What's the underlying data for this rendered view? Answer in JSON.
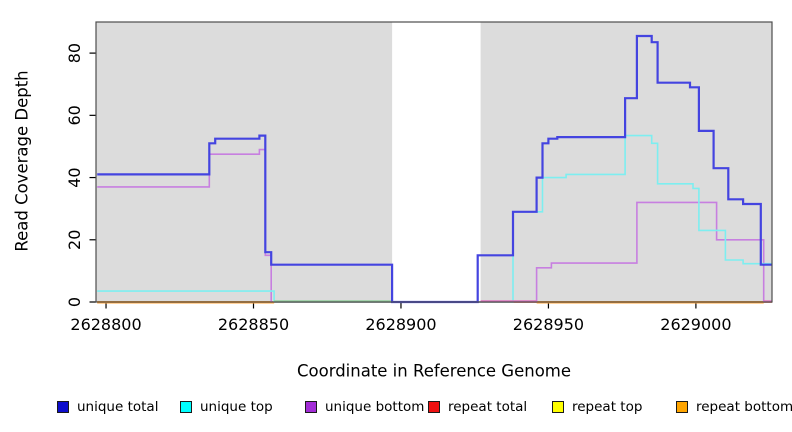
{
  "chart_data": {
    "type": "step-line",
    "title": "",
    "xlabel": "Coordinate in Reference Genome",
    "ylabel": "Read Coverage Depth",
    "xlim": [
      2628796.6,
      2629025.8
    ],
    "ylim": [
      0,
      90
    ],
    "x_ticks": [
      2628800,
      2628850,
      2628900,
      2628950,
      2629000
    ],
    "y_ticks": [
      0,
      20,
      40,
      60,
      80
    ],
    "grid": false,
    "plot_bg_color": "#dcdcdc",
    "border_color": "#4d4d4d",
    "no_data_region": {
      "from": 2628897,
      "to": 2628927,
      "color": "#ffffff"
    },
    "legend_position": "bottom",
    "series": [
      {
        "name": "unique total",
        "line_color": "#4444e0",
        "legend_color": "#0d0dcc",
        "line_width": 2.2,
        "steps": [
          [
            2628797,
            41
          ],
          [
            2628835,
            51
          ],
          [
            2628837,
            52.5
          ],
          [
            2628852,
            53.5
          ],
          [
            2628854,
            16
          ],
          [
            2628856,
            12
          ],
          [
            2628897,
            0
          ],
          [
            2628926,
            15
          ],
          [
            2628938,
            29
          ],
          [
            2628946,
            40
          ],
          [
            2628948,
            51
          ],
          [
            2628950,
            52.5
          ],
          [
            2628953,
            53
          ],
          [
            2628976,
            65.5
          ],
          [
            2628980,
            85.5
          ],
          [
            2628985,
            83.5
          ],
          [
            2628987,
            70.5
          ],
          [
            2628998,
            69
          ],
          [
            2629001,
            55
          ],
          [
            2629006,
            43
          ],
          [
            2629011,
            33
          ],
          [
            2629016,
            31.5
          ],
          [
            2629022,
            12
          ]
        ]
      },
      {
        "name": "unique top",
        "line_color": "#7deef0",
        "legend_color": "#00ffff",
        "line_width": 1.6,
        "steps": [
          [
            2628797,
            3.5
          ],
          [
            2628857,
            0
          ],
          [
            2628938,
            29
          ],
          [
            2628948,
            40
          ],
          [
            2628956,
            41
          ],
          [
            2628976,
            53.5
          ],
          [
            2628985,
            51
          ],
          [
            2628987,
            38
          ],
          [
            2628999,
            36.5
          ],
          [
            2629001,
            23
          ],
          [
            2629010,
            13.5
          ],
          [
            2629016,
            12.3
          ]
        ]
      },
      {
        "name": "unique bottom",
        "line_color": "#c77fe0",
        "legend_color": "#a22cd6",
        "line_width": 1.6,
        "steps": [
          [
            2628797,
            37
          ],
          [
            2628835,
            47.5
          ],
          [
            2628852,
            49
          ],
          [
            2628854,
            15
          ],
          [
            2628856,
            0
          ],
          [
            2628946,
            11
          ],
          [
            2628951,
            12.5
          ],
          [
            2628980,
            32
          ],
          [
            2629007,
            20
          ],
          [
            2629023,
            0
          ]
        ]
      },
      {
        "name": "repeat total",
        "line_color": "#e85555",
        "legend_color": "#ee1111",
        "line_width": 1.6,
        "steps": [
          [
            2628797,
            0
          ]
        ]
      },
      {
        "name": "repeat top",
        "line_color": "#f0f06a",
        "legend_color": "#ffff00",
        "line_width": 1.6,
        "steps": [
          [
            2628797,
            0
          ]
        ]
      },
      {
        "name": "repeat bottom",
        "line_color": "#ffa033",
        "legend_color": "#ffa500",
        "line_width": 2,
        "steps": [
          [
            2628797,
            0
          ]
        ]
      }
    ],
    "baseline_overlap_segments": [
      {
        "color": "#ffa033",
        "from": 2628797,
        "to": 2628857,
        "value": 0,
        "dy": 0.5,
        "width": 2
      },
      {
        "color": "#92ce9c",
        "from": 2628857,
        "to": 2628897,
        "value": 0,
        "dy": -0.9,
        "width": 1.6
      },
      {
        "color": "#dd72be",
        "from": 2628927,
        "to": 2628946,
        "value": 0,
        "dy": -0.9,
        "width": 1.6
      },
      {
        "color": "#ffa033",
        "from": 2628946,
        "to": 2629023,
        "value": 0,
        "dy": 0.5,
        "width": 2
      },
      {
        "color": "#dd72be",
        "from": 2629023,
        "to": 2629025.8,
        "value": 0,
        "dy": -0.9,
        "width": 1.6
      }
    ]
  }
}
